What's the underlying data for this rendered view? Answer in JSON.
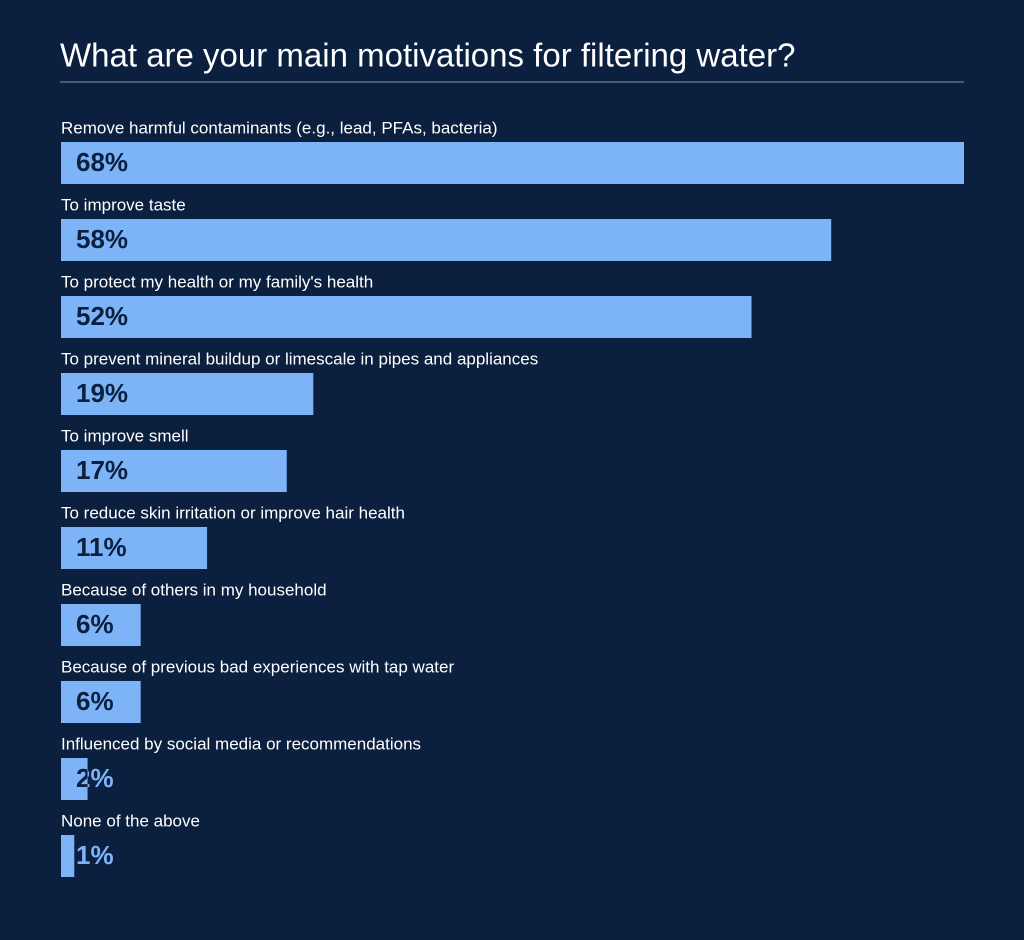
{
  "chart_data": {
    "type": "bar",
    "orientation": "horizontal",
    "title": "What are your main motivations for filtering water?",
    "categories": [
      "Remove harmful contaminants (e.g., lead, PFAs, bacteria)",
      "To improve taste",
      "To protect my health or my family's health",
      "To prevent mineral buildup or limescale in pipes and appliances",
      "To improve smell",
      "To reduce skin irritation or improve hair health",
      "Because of others in my household",
      "Because of previous bad experiences with tap water",
      "Influenced by social media or recommendations",
      "None of the above"
    ],
    "values": [
      68,
      58,
      52,
      19,
      17,
      11,
      6,
      6,
      2,
      1
    ],
    "value_labels": [
      "68%",
      "58%",
      "52%",
      "19%",
      "17%",
      "11%",
      "6%",
      "6%",
      "2%",
      "1%"
    ],
    "color": "#7db4f8"
  }
}
